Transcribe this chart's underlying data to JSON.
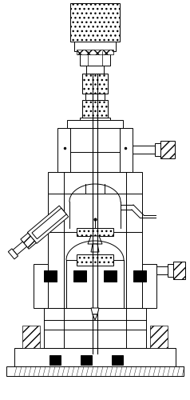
{
  "bg_color": "#ffffff",
  "line_color": "#000000",
  "fig_width": 2.38,
  "fig_height": 5.0,
  "dpi": 100
}
